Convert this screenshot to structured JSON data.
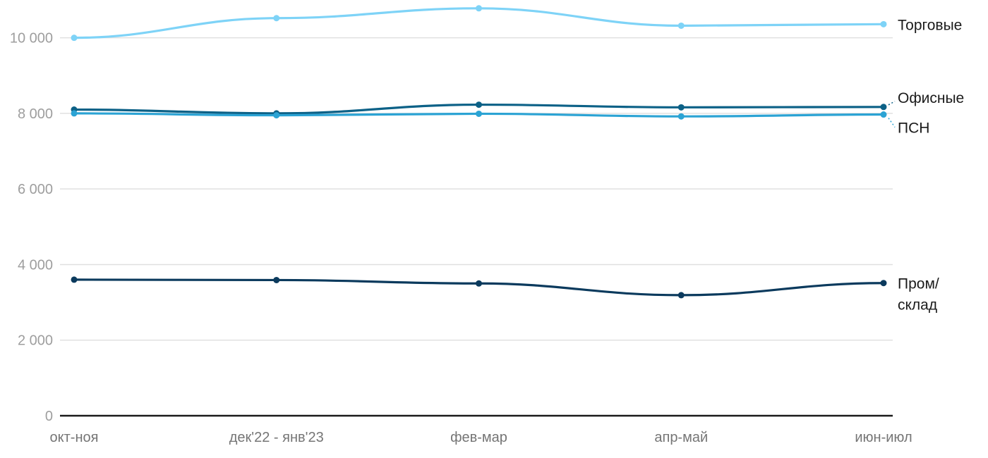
{
  "chart_data": {
    "type": "line",
    "title": "",
    "xlabel": "",
    "ylabel": "",
    "categories": [
      "окт-ноя",
      "дек'22 - янв'23",
      "фев-мар",
      "апр-май",
      "июн-июл"
    ],
    "series": [
      {
        "name": "Торговые",
        "color": "#7ed3f7",
        "values": [
          10000,
          10520,
          10780,
          10320,
          10360
        ]
      },
      {
        "name": "Офисные",
        "color": "#0c6187",
        "values": [
          8100,
          8000,
          8230,
          8160,
          8170
        ]
      },
      {
        "name": "ПСН",
        "color": "#2ba3d4",
        "values": [
          8000,
          7950,
          7990,
          7920,
          7970
        ]
      },
      {
        "name": "Пром/склад",
        "color": "#0b3a5d",
        "values": [
          3600,
          3590,
          3500,
          3190,
          3510
        ]
      }
    ],
    "ylim": [
      0,
      11000
    ],
    "yticks": [
      0,
      2000,
      4000,
      6000,
      8000,
      10000
    ],
    "ytick_labels": [
      "0",
      "2 000",
      "4 000",
      "6 000",
      "8 000",
      "10 000"
    ],
    "grid": true,
    "legend_position": "right-inline",
    "colors": {
      "gridline": "#e0e0e0",
      "axis": "#1a1a1a",
      "ytick_text": "#9e9e9e",
      "xtick_text": "#757575",
      "label_text": "#1b1b1b"
    }
  }
}
